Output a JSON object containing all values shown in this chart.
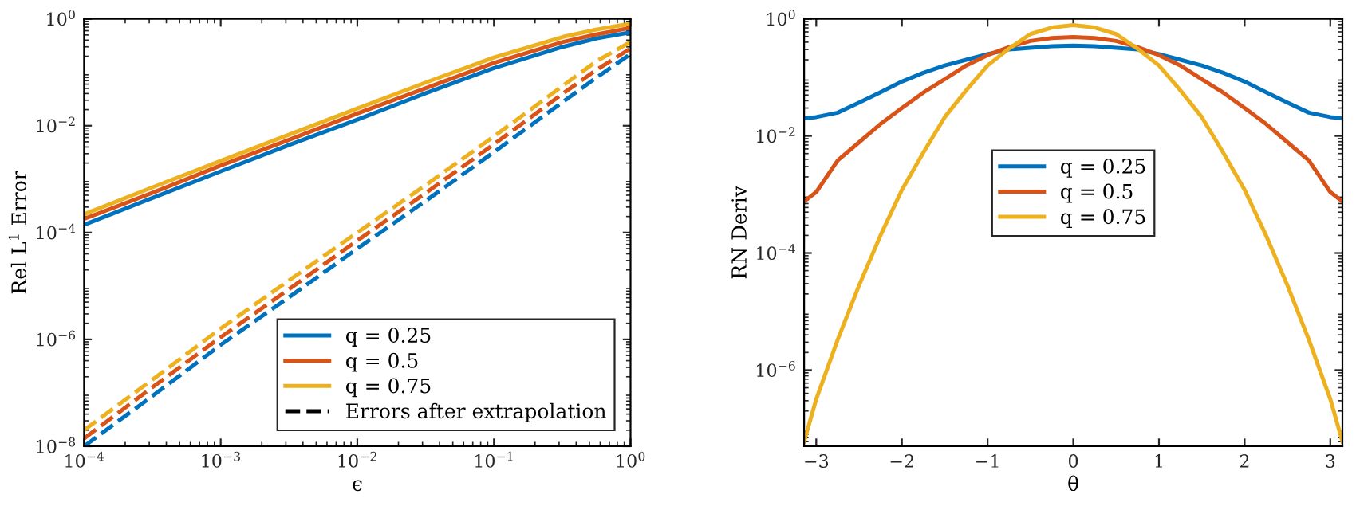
{
  "chart_data": [
    {
      "type": "line",
      "xlabel": "ϵ",
      "ylabel": "Rel L$^{1}$ Error",
      "log": "xy",
      "legend": "lower right",
      "grid": false,
      "x": [
        0.0001,
        0.00032,
        0.001,
        0.0032,
        0.01,
        0.032,
        0.1,
        0.32,
        0.56,
        1
      ],
      "xlim": [
        0.0001,
        1
      ],
      "ylim": [
        1e-08,
        1
      ],
      "xticks": [
        {
          "value": 0.0001,
          "label": "10$^{−4}$"
        },
        {
          "value": 0.001,
          "label": "10$^{−3}$"
        },
        {
          "value": 0.01,
          "label": "10$^{−2}$"
        },
        {
          "value": 0.1,
          "label": "10$^{−1}$"
        },
        {
          "value": 1,
          "label": "10$^{0}$"
        }
      ],
      "yticks": [
        {
          "value": 1e-08,
          "label": "10$^{−8}$"
        },
        {
          "value": 1e-06,
          "label": "10$^{−6}$"
        },
        {
          "value": 0.0001,
          "label": "10$^{−4}$"
        },
        {
          "value": 0.01,
          "label": "10$^{−2}$"
        },
        {
          "value": 1,
          "label": "10$^{0}$"
        }
      ],
      "series": [
        {
          "name": "q = 0.25",
          "color": "#0072bd",
          "line_style": "solid",
          "values": [
            0.00014,
            0.00045,
            0.0014,
            0.0044,
            0.013,
            0.041,
            0.12,
            0.3,
            0.43,
            0.56
          ]
        },
        {
          "name": "q = 0.5",
          "color": "#d95319",
          "line_style": "solid",
          "values": [
            0.00018,
            0.00056,
            0.0018,
            0.0055,
            0.017,
            0.051,
            0.15,
            0.37,
            0.51,
            0.68
          ]
        },
        {
          "name": "q = 0.75",
          "color": "#edb120",
          "line_style": "solid",
          "values": [
            0.00022,
            0.00071,
            0.0022,
            0.0069,
            0.021,
            0.065,
            0.19,
            0.46,
            0.63,
            0.81
          ]
        },
        {
          "name": "Errors after extrapolation",
          "color": "#000000",
          "line_style": "dashed",
          "values": [
            null,
            null,
            null,
            null,
            null,
            null,
            null,
            null,
            null,
            null
          ]
        },
        {
          "color": "#0072bd",
          "line_style": "dashed",
          "values": [
            1e-08,
            8.9e-08,
            7.9e-07,
            6.3e-06,
            5e-05,
            0.0004,
            0.0032,
            0.028,
            0.079,
            0.22
          ]
        },
        {
          "color": "#d95319",
          "line_style": "dashed",
          "values": [
            1.4e-08,
            1.3e-07,
            1.1e-06,
            8.9e-06,
            7.1e-05,
            0.00056,
            0.0045,
            0.04,
            0.11,
            0.28
          ]
        },
        {
          "color": "#edb120",
          "line_style": "dashed",
          "values": [
            2e-08,
            1.8e-07,
            1.6e-06,
            1.3e-05,
            0.0001,
            0.00079,
            0.0063,
            0.056,
            0.16,
            0.37
          ]
        }
      ]
    },
    {
      "type": "line",
      "xlabel": "θ",
      "ylabel": "RN Deriv",
      "log": "y",
      "legend": "upper center",
      "grid": false,
      "x": [
        -3.1416,
        -3,
        -2.75,
        -2.5,
        -2.25,
        -2,
        -1.75,
        -1.5,
        -1.25,
        -1,
        -0.75,
        -0.5,
        -0.25,
        0,
        0.25,
        0.5,
        0.75,
        1,
        1.25,
        1.5,
        1.75,
        2,
        2.25,
        2.5,
        2.75,
        3,
        3.1416
      ],
      "xlim": [
        -3.1416,
        3.1416
      ],
      "ylim": [
        5e-08,
        1
      ],
      "xticks": [
        {
          "value": -3,
          "label": "−3"
        },
        {
          "value": -2,
          "label": "−2"
        },
        {
          "value": -1,
          "label": "−1"
        },
        0,
        1,
        2,
        3
      ],
      "yticks": [
        {
          "value": 1e-06,
          "label": "10$^{−6}$"
        },
        {
          "value": 0.0001,
          "label": "10$^{−4}$"
        },
        {
          "value": 0.01,
          "label": "10$^{−2}$"
        },
        {
          "value": 1,
          "label": "10$^{0}$"
        }
      ],
      "series": [
        {
          "name": "q = 0.25",
          "color": "#0072bd",
          "line_style": "solid",
          "values": [
            0.02,
            0.021,
            0.025,
            0.037,
            0.056,
            0.085,
            0.12,
            0.16,
            0.2,
            0.25,
            0.3,
            0.32,
            0.34,
            0.35,
            0.34,
            0.32,
            0.3,
            0.25,
            0.2,
            0.16,
            0.12,
            0.085,
            0.056,
            0.037,
            0.025,
            0.021,
            0.02
          ]
        },
        {
          "name": "q = 0.5",
          "color": "#d95319",
          "line_style": "solid",
          "values": [
            0.00076,
            0.0011,
            0.0038,
            0.0078,
            0.016,
            0.03,
            0.055,
            0.093,
            0.16,
            0.24,
            0.33,
            0.42,
            0.47,
            0.49,
            0.47,
            0.42,
            0.33,
            0.24,
            0.16,
            0.093,
            0.055,
            0.03,
            0.016,
            0.0078,
            0.0038,
            0.0011,
            0.00076
          ]
        },
        {
          "name": "q = 0.75",
          "color": "#edb120",
          "line_style": "solid",
          "values": [
            6e-08,
            3.2e-07,
            3.3e-06,
            2.8e-05,
            0.0002,
            0.0012,
            0.0052,
            0.021,
            0.06,
            0.16,
            0.31,
            0.55,
            0.71,
            0.78,
            0.71,
            0.55,
            0.31,
            0.16,
            0.06,
            0.021,
            0.0052,
            0.0012,
            0.0002,
            2.8e-05,
            3.3e-06,
            3.2e-07,
            6e-08
          ]
        }
      ]
    }
  ]
}
